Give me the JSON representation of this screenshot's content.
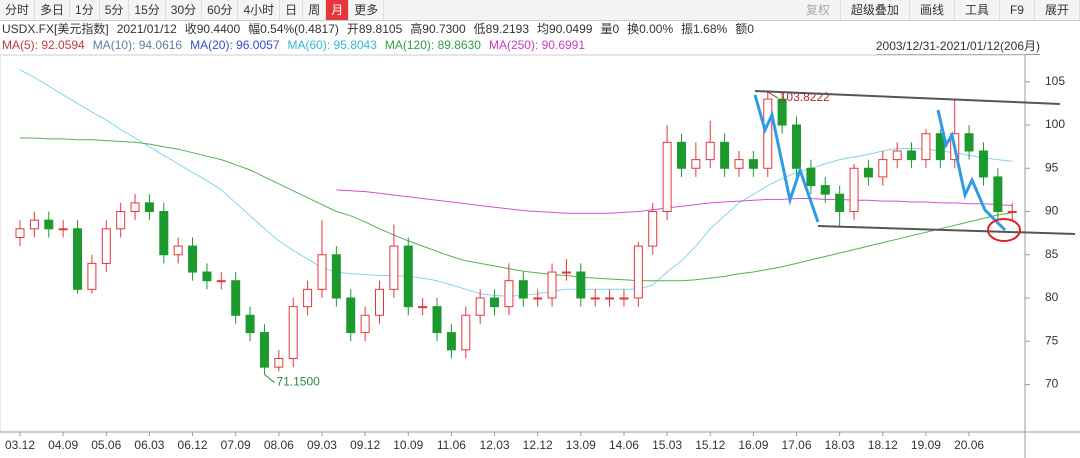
{
  "toolbar": {
    "left": [
      "分时",
      "多日",
      "1分",
      "5分",
      "15分",
      "30分",
      "60分",
      "4小时",
      "日",
      "周",
      "月",
      "更多"
    ],
    "right": [
      "复权",
      "超级叠加",
      "画线",
      "工具",
      "F9",
      "展开"
    ]
  },
  "info": [
    "USDX.FX[美元指数]",
    "2021/01/12",
    "收90.4400",
    "幅0.54%(0.4817)",
    "开89.8105",
    "高90.7300",
    "低89.2193",
    "均90.0499",
    "量0",
    "换0.00%",
    "振1.68%",
    "额0"
  ],
  "ma_legend": [
    {
      "text": "MA(5): 92.0594",
      "color": "#c23a3a"
    },
    {
      "text": "MA(10): 94.0616",
      "color": "#5a7fa8"
    },
    {
      "text": "MA(20): 96.0057",
      "color": "#2f4fd0"
    },
    {
      "text": "MA(60): 95.8043",
      "color": "#31b9d6"
    },
    {
      "text": "MA(120): 89.8630",
      "color": "#2ea043"
    },
    {
      "text": "MA(250): 90.6991",
      "color": "#c83ac8"
    }
  ],
  "range": "2003/12/31-2021/01/12(206月)",
  "chart_data": {
    "type": "candlestick",
    "categories": [
      "03.12",
      null,
      null,
      "04.09",
      null,
      null,
      "05.06",
      null,
      null,
      "06.03",
      null,
      null,
      "06.12",
      null,
      null,
      "07.09",
      null,
      null,
      "08.06",
      null,
      null,
      "09.03",
      null,
      null,
      "09.12",
      null,
      null,
      "10.09",
      null,
      null,
      "11.06",
      null,
      null,
      "12.03",
      null,
      null,
      "12.12",
      null,
      null,
      "13.09",
      null,
      null,
      "14.06",
      null,
      null,
      "15.03",
      null,
      null,
      "15.12",
      null,
      null,
      "16.09",
      null,
      null,
      "17.06",
      null,
      null,
      "18.03",
      null,
      null,
      "18.12",
      null,
      null,
      "19.09",
      null,
      null,
      "20.06",
      null,
      null,
      null
    ],
    "open": [
      87,
      88,
      89,
      88,
      88,
      81,
      84,
      88,
      90,
      91,
      90,
      85,
      86,
      83,
      82,
      82,
      78,
      76,
      72,
      73,
      79,
      81,
      85,
      80,
      76,
      78,
      81,
      86,
      79,
      79,
      76,
      74,
      78,
      80,
      79,
      82,
      80,
      80,
      83,
      83,
      80,
      80,
      80,
      80,
      86,
      90,
      98,
      95,
      96,
      98,
      95,
      96,
      95,
      103,
      100,
      95,
      93,
      92,
      90,
      95,
      94,
      96,
      97,
      96,
      99,
      96,
      99,
      97,
      94,
      90
    ],
    "high": [
      89,
      90,
      90,
      89,
      89,
      85,
      89,
      91,
      92,
      92,
      91,
      87,
      87,
      84,
      83,
      83,
      79,
      77,
      74,
      80,
      82,
      89,
      86,
      81,
      79,
      82,
      88.5,
      87,
      80,
      80,
      77,
      79,
      81,
      81,
      84,
      83,
      81,
      84,
      84.5,
      84,
      81,
      81,
      81,
      86.5,
      91,
      100,
      99,
      98,
      100.5,
      99,
      97,
      97,
      103.8222,
      103.5,
      101,
      96,
      94,
      93,
      95.5,
      96,
      97,
      98,
      98,
      99.5,
      99.5,
      103,
      100,
      98,
      95,
      91
    ],
    "low": [
      86,
      87,
      87,
      87,
      80.5,
      80.5,
      83,
      87,
      89,
      89,
      84,
      84,
      82,
      81,
      81,
      77,
      75,
      71.15,
      71.5,
      72,
      78,
      80,
      79,
      75,
      75,
      77,
      80,
      78,
      78,
      75,
      73,
      73,
      77,
      78,
      78,
      79,
      79,
      79,
      82,
      79,
      79,
      79,
      79,
      79,
      85,
      89,
      94,
      94,
      95,
      94,
      94,
      94,
      94,
      99,
      94,
      92,
      91,
      88.3,
      89,
      93,
      93,
      95,
      95,
      95,
      95,
      95,
      96,
      93,
      89,
      89
    ],
    "close": [
      88,
      89,
      88,
      88,
      81,
      84,
      88,
      90,
      91,
      90,
      85,
      86,
      83,
      82,
      82,
      78,
      76,
      72,
      73,
      79,
      81,
      85,
      80,
      76,
      78,
      81,
      86,
      79,
      79,
      76,
      74,
      78,
      80,
      79,
      82,
      80,
      80,
      83,
      83,
      80,
      80,
      80,
      80,
      86,
      90,
      98,
      95,
      96,
      98,
      95,
      96,
      95,
      103,
      100,
      95,
      93,
      92,
      90,
      95,
      94,
      96,
      97,
      96,
      99,
      96,
      99,
      97,
      94,
      90,
      90
    ],
    "up_color": "#e8363d",
    "down_color": "#1d9a2e",
    "series": [
      {
        "color": "#7fd6ea",
        "values": [
          106.4,
          105.5,
          104.5,
          103.5,
          102.5,
          101.5,
          100.6,
          99.5,
          98.5,
          97.5,
          96.5,
          95.5,
          94.5,
          93.6,
          92.5,
          91,
          89.5,
          88,
          86.6,
          85.5,
          84.5,
          83.5,
          83,
          82.8,
          82.7,
          82.6,
          82.6,
          82.5,
          82.3,
          82,
          81.5,
          81,
          80.5,
          80.3,
          80.2,
          80.3,
          80.5,
          80.8,
          81,
          81,
          81,
          81,
          81,
          81,
          81.5,
          83,
          84.3,
          86,
          88,
          89.5,
          91,
          92,
          93,
          93.8,
          94.5,
          95,
          95.5,
          96,
          96.3,
          96.6,
          97,
          97.3,
          97.3,
          97.2,
          97,
          96.8,
          96.5,
          96.2,
          96,
          95.8
        ]
      },
      {
        "color": "#55b055",
        "values": [
          98.5,
          98.5,
          98.4,
          98.4,
          98.3,
          98.3,
          98.2,
          98.1,
          98,
          97.8,
          97.5,
          97.2,
          96.8,
          96.4,
          96,
          95.4,
          94.8,
          94,
          93.2,
          92.4,
          91.6,
          90.8,
          90,
          89.5,
          88.8,
          88,
          87.3,
          86.6,
          86,
          85.4,
          84.8,
          84.3,
          84,
          83.7,
          83.4,
          83.1,
          82.9,
          82.7,
          82.6,
          82.4,
          82.3,
          82.2,
          82.1,
          82,
          82,
          82,
          82,
          82.1,
          82.3,
          82.5,
          82.8,
          83,
          83.3,
          83.6,
          84,
          84.4,
          84.8,
          85.2,
          85.6,
          86,
          86.4,
          86.8,
          87.2,
          87.6,
          88,
          88.4,
          88.8,
          89.2,
          89.6,
          89.863
        ]
      },
      {
        "color": "#d24fd2",
        "values": [
          null,
          null,
          null,
          null,
          null,
          null,
          null,
          null,
          null,
          null,
          null,
          null,
          null,
          null,
          null,
          null,
          null,
          null,
          null,
          null,
          null,
          null,
          92.5,
          92.4,
          92.3,
          92.1,
          91.9,
          91.7,
          91.5,
          91.3,
          91.1,
          90.9,
          90.7,
          90.5,
          90.3,
          90.1,
          90,
          89.9,
          89.8,
          89.8,
          89.8,
          89.8,
          89.9,
          90,
          90.2,
          90.4,
          90.6,
          90.8,
          91,
          91.1,
          91.2,
          91.3,
          91.4,
          91.4,
          91.5,
          91.5,
          91.4,
          91.4,
          91.3,
          91.3,
          91.2,
          91.2,
          91.1,
          91.1,
          91,
          91,
          90.9,
          90.9,
          90.8,
          90.6991
        ]
      }
    ],
    "annotations": [
      "103.8222",
      "71.1500"
    ],
    "ylim": [
      64.5,
      108.1
    ],
    "yticks": [
      70,
      75,
      80,
      85,
      90,
      95,
      100,
      105
    ]
  }
}
